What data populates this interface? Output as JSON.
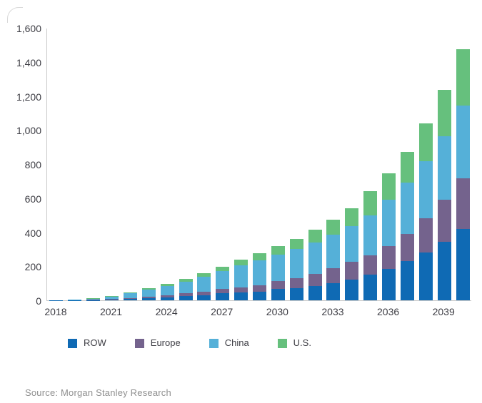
{
  "chart_data": {
    "type": "bar",
    "stacked": true,
    "title": "",
    "categories": [
      "2018",
      "2019",
      "2020",
      "2021",
      "2022",
      "2023",
      "2024",
      "2025",
      "2026",
      "2027",
      "2028",
      "2029",
      "2030",
      "2031",
      "2032",
      "2033",
      "2034",
      "2035",
      "2036",
      "2037",
      "2038",
      "2039",
      "2040"
    ],
    "series": [
      {
        "name": "ROW",
        "color": "#0f6ab4",
        "values": [
          1,
          1,
          2,
          4,
          8,
          13,
          18,
          25,
          30,
          40,
          45,
          50,
          65,
          70,
          85,
          100,
          120,
          150,
          185,
          230,
          280,
          345,
          420
        ]
      },
      {
        "name": "Europe",
        "color": "#74638d",
        "values": [
          0,
          1,
          2,
          3,
          6,
          9,
          12,
          15,
          20,
          25,
          30,
          40,
          50,
          60,
          70,
          90,
          105,
          115,
          135,
          160,
          200,
          245,
          295
        ]
      },
      {
        "name": "China",
        "color": "#55b0d8",
        "values": [
          1,
          2,
          5,
          15,
          26,
          40,
          53,
          70,
          90,
          105,
          130,
          145,
          155,
          170,
          185,
          195,
          210,
          235,
          270,
          300,
          335,
          375,
          430
        ]
      },
      {
        "name": "U.S.",
        "color": "#66c07d",
        "values": [
          0,
          1,
          2,
          3,
          5,
          8,
          12,
          15,
          20,
          25,
          35,
          40,
          50,
          60,
          75,
          90,
          105,
          140,
          155,
          180,
          225,
          270,
          330
        ]
      }
    ],
    "ylim": [
      0,
      1600
    ],
    "y_tick_labels": [
      "0",
      "200",
      "400",
      "600",
      "800",
      "1,000",
      "1,200",
      "1,400",
      "1,600"
    ],
    "x_tick_labels": [
      "2018",
      "2021",
      "2024",
      "2027",
      "2030",
      "2033",
      "2036",
      "2039"
    ],
    "legend_position": "bottom",
    "grid": false
  },
  "source": {
    "label": "Source: Morgan Stanley Research"
  },
  "colors": {
    "axis": "#c9c9c9",
    "tick_text": "#3d3d44",
    "source_text": "#8f8f8f"
  }
}
